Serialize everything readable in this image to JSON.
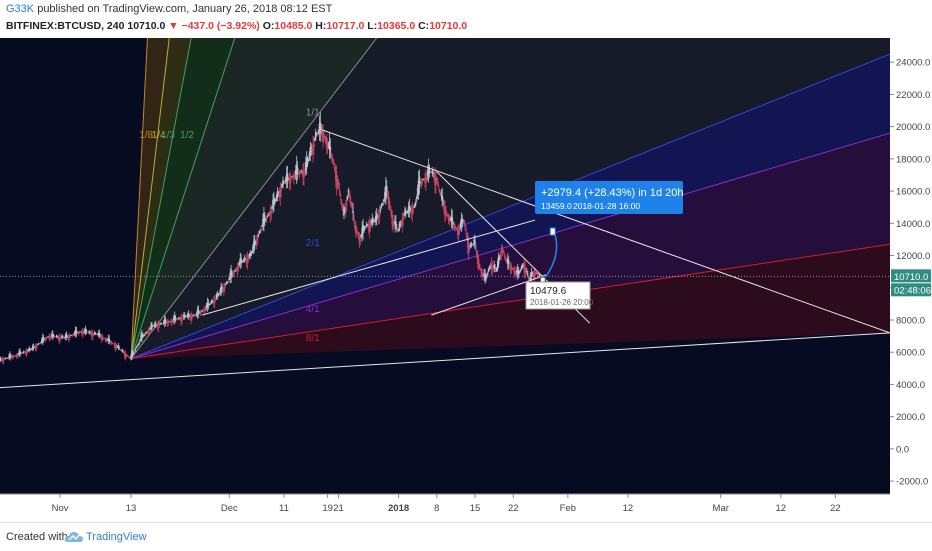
{
  "header": {
    "author": "G33K",
    "published_text": " published on TradingView.com, January 26, 2018 08:12 EST",
    "symbol": "BITFINEX:BTCUSD, 240",
    "last": "10710.0",
    "change": "−437.0 (−3.92%)",
    "open_label": "O:",
    "open": "10485.0",
    "high_label": "H:",
    "high": "10717.0",
    "low_label": "L:",
    "low": "10365.0",
    "close_label": "C:",
    "close": "10710.0"
  },
  "footer": {
    "created_with": "Created with",
    "brand": "TradingView"
  },
  "chart_data": {
    "type": "line",
    "title": "",
    "xlabel": "",
    "ylabel": "",
    "ylim": [
      -2800,
      25500
    ],
    "y_ticks": [
      24000,
      22000,
      20000,
      18000,
      16000,
      14000,
      12000,
      10000,
      8000,
      6000,
      4000,
      2000,
      0,
      -2000
    ],
    "y_tick_labels": [
      "24000.0",
      "22000.0",
      "20000.0",
      "18000.0",
      "16000.0",
      "14000.0",
      "12000.0",
      "10000.0",
      "8000.0",
      "6000.0",
      "4000.0",
      "2000.0",
      "0.0",
      "-2000.0"
    ],
    "x_ticks": [
      {
        "label": "Nov",
        "day": -13
      },
      {
        "label": "13",
        "day": 0
      },
      {
        "label": "Dec",
        "day": 18
      },
      {
        "label": "11",
        "day": 28
      },
      {
        "label": "19",
        "day": 36
      },
      {
        "label": "21",
        "day": 38
      },
      {
        "label": "2018",
        "day": 49
      },
      {
        "label": "8",
        "day": 56
      },
      {
        "label": "15",
        "day": 63
      },
      {
        "label": "22",
        "day": 70
      },
      {
        "label": "Feb",
        "day": 80
      },
      {
        "label": "12",
        "day": 91
      },
      {
        "label": "Mar",
        "day": 108
      },
      {
        "label": "12",
        "day": 119
      },
      {
        "label": "22",
        "day": 129
      }
    ],
    "x_day_range": [
      -24,
      139
    ],
    "price_series": [
      [
        -24,
        5500
      ],
      [
        -21,
        5800
      ],
      [
        -18,
        6200
      ],
      [
        -15,
        7000
      ],
      [
        -12,
        6900
      ],
      [
        -9,
        7300
      ],
      [
        -6,
        7100
      ],
      [
        -3,
        6500
      ],
      [
        0,
        5600
      ],
      [
        2,
        6900
      ],
      [
        4,
        7600
      ],
      [
        6,
        7800
      ],
      [
        8,
        8000
      ],
      [
        10,
        8200
      ],
      [
        12,
        8300
      ],
      [
        14,
        8800
      ],
      [
        16,
        9500
      ],
      [
        18,
        10500
      ],
      [
        20,
        11500
      ],
      [
        22,
        12000
      ],
      [
        24,
        13800
      ],
      [
        26,
        15000
      ],
      [
        28,
        16500
      ],
      [
        30,
        17000
      ],
      [
        32,
        17300
      ],
      [
        34,
        19500
      ],
      [
        35,
        19800
      ],
      [
        36,
        19000
      ],
      [
        37,
        18000
      ],
      [
        38,
        16500
      ],
      [
        39,
        14500
      ],
      [
        40,
        16000
      ],
      [
        41,
        14000
      ],
      [
        42,
        13000
      ],
      [
        43,
        13800
      ],
      [
        45,
        14200
      ],
      [
        47,
        16000
      ],
      [
        48,
        14200
      ],
      [
        49,
        13500
      ],
      [
        50,
        14500
      ],
      [
        52,
        15000
      ],
      [
        53,
        16500
      ],
      [
        55,
        17200
      ],
      [
        56,
        16800
      ],
      [
        57,
        15500
      ],
      [
        58,
        14500
      ],
      [
        60,
        13500
      ],
      [
        61,
        14200
      ],
      [
        62,
        12500
      ],
      [
        63,
        12800
      ],
      [
        64,
        11200
      ],
      [
        65,
        10500
      ],
      [
        66,
        11500
      ],
      [
        67,
        11000
      ],
      [
        68,
        12500
      ],
      [
        69,
        11500
      ],
      [
        70,
        11200
      ],
      [
        71,
        10800
      ],
      [
        72,
        11500
      ],
      [
        73,
        10500
      ],
      [
        74,
        11000
      ],
      [
        75,
        10710
      ]
    ],
    "current_price": 10710.0,
    "current_price_label": "10710.0",
    "countdown_label": "02:48:06",
    "gann_fan_labels": [
      "1/8",
      "1/4",
      "1/3",
      "1/2",
      "1/1",
      "2/1",
      "4/1",
      "8/1"
    ],
    "annotation": {
      "text": "+2979.4 (+28.43%) in 1d 20h",
      "sub_price": "13459.0",
      "sub_date": "2018-01-28  16:00",
      "low_price": "10479.6",
      "low_date": "2018-01-26 20:00"
    },
    "colors": {
      "background": "#070b22",
      "price_up": "#b9c5cc",
      "price_down": "#c8455e",
      "white_lines": "#e6e6e6",
      "annotation_bg": "#1f82e8",
      "fan_orange": "#c9822d",
      "fan_yellow": "#b6b236",
      "fan_green": "#3fa35a",
      "fan_grey": "#8b8b8b",
      "fan_blue": "#2b4ad4",
      "fan_purple": "#8a2fc9",
      "fan_red": "#d01f2d",
      "axis_text": "#c5c9d4",
      "price_badge": "#2f8d7f"
    }
  }
}
